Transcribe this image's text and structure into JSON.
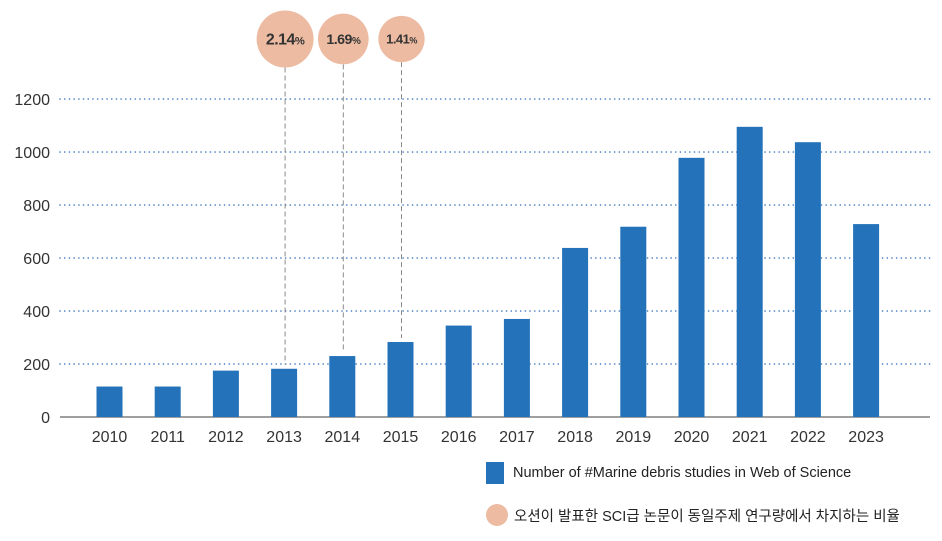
{
  "chart_data": {
    "type": "bar",
    "categories": [
      "2010",
      "2011",
      "2012",
      "2013",
      "2014",
      "2015",
      "2016",
      "2017",
      "2018",
      "2019",
      "2020",
      "2021",
      "2022",
      "2023"
    ],
    "series": [
      {
        "name": "Number of #Marine debris studies in Web of Science",
        "values": [
          115,
          115,
          175,
          182,
          230,
          283,
          345,
          370,
          638,
          718,
          978,
          1095,
          1037,
          728
        ]
      }
    ],
    "ratio_series": {
      "name": "오션이 발표한 SCI급 논문이 동일주제 연구량에서 차지하는 비율",
      "points": [
        {
          "category": "2013",
          "value": "2.14",
          "unit": "%"
        },
        {
          "category": "2014",
          "value": "1.69",
          "unit": "%"
        },
        {
          "category": "2015",
          "value": "1.41",
          "unit": "%"
        }
      ]
    },
    "yticks": [
      0,
      200,
      400,
      600,
      800,
      1000,
      1200
    ],
    "ylim": [
      0,
      1200
    ],
    "grid": true,
    "legend_position": "bottom-right",
    "colors": {
      "bar": "#2473BA",
      "bubble": "#EDBBA2",
      "grid": "#3D78C0",
      "axis": "#666666"
    }
  }
}
